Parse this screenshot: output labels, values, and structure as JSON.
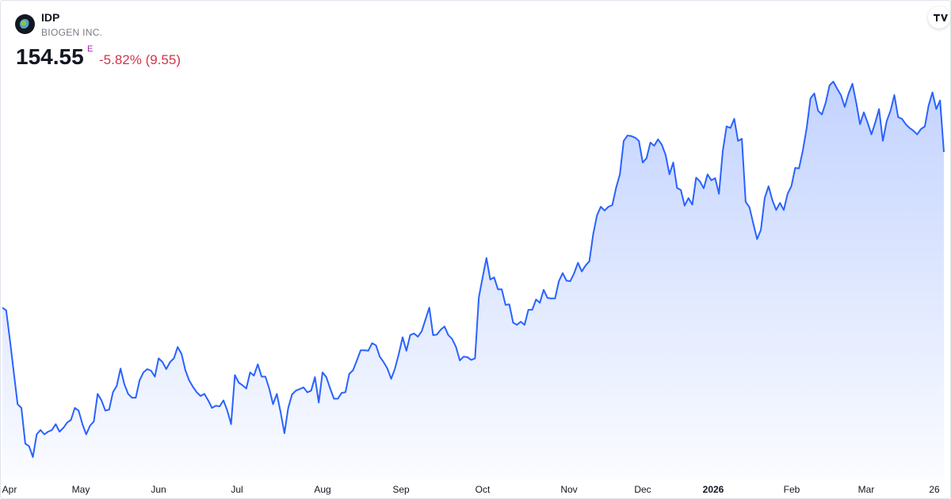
{
  "header": {
    "symbol": "IDP",
    "name": "BIOGEN INC.",
    "price": "154.55",
    "badge": "E",
    "change": "-5.82% (9.55)"
  },
  "chart_data": {
    "type": "area",
    "x_labels": [
      "Apr",
      "May",
      "Jun",
      "Jul",
      "Aug",
      "Sep",
      "Oct",
      "Nov",
      "Dec",
      "2026",
      "Feb",
      "Mar",
      "26"
    ],
    "series": [
      {
        "color": "#2962ff",
        "values": [
          125.7,
          125.2,
          119.6,
          113.7,
          107.8,
          107.1,
          100.5,
          100.0,
          98.0,
          102.2,
          103.0,
          102.2,
          102.7,
          103.0,
          104.1,
          102.7,
          103.4,
          104.4,
          104.9,
          107.1,
          106.6,
          104.1,
          102.2,
          103.8,
          104.6,
          109.7,
          108.5,
          106.6,
          106.8,
          110.0,
          111.2,
          114.4,
          111.5,
          109.7,
          109.0,
          109.0,
          112.2,
          113.7,
          114.3,
          114.0,
          112.9,
          116.3,
          115.6,
          114.3,
          115.6,
          116.3,
          118.4,
          117.1,
          114.1,
          112.2,
          111.0,
          110.0,
          109.3,
          109.7,
          108.5,
          107.1,
          107.5,
          107.4,
          108.5,
          106.6,
          104.1,
          113.2,
          111.8,
          111.3,
          110.7,
          113.7,
          113.1,
          115.2,
          112.9,
          112.9,
          110.7,
          107.8,
          109.7,
          106.3,
          102.4,
          107.1,
          109.6,
          110.3,
          110.6,
          110.9,
          110.0,
          110.3,
          112.8,
          108.1,
          113.7,
          112.8,
          110.7,
          108.8,
          108.8,
          109.9,
          110.0,
          113.4,
          114.1,
          115.9,
          117.8,
          117.8,
          117.7,
          119.1,
          118.7,
          116.6,
          115.6,
          114.4,
          112.5,
          114.4,
          117.1,
          120.2,
          117.7,
          120.6,
          120.9,
          120.3,
          121.3,
          123.5,
          125.7,
          120.6,
          120.7,
          121.6,
          122.2,
          120.6,
          119.9,
          118.4,
          115.9,
          116.6,
          116.5,
          116.0,
          116.3,
          127.6,
          131.3,
          134.9,
          130.9,
          131.3,
          129.1,
          129.1,
          126.2,
          126.3,
          122.9,
          122.5,
          123.1,
          122.5,
          125.3,
          125.3,
          127.2,
          126.6,
          129.0,
          127.5,
          127.4,
          127.4,
          130.6,
          132.1,
          130.7,
          130.6,
          132.1,
          134.0,
          132.4,
          133.5,
          134.3,
          139.3,
          142.8,
          144.4,
          143.7,
          144.4,
          144.7,
          147.9,
          150.4,
          156.6,
          157.6,
          157.5,
          157.2,
          156.6,
          152.6,
          153.4,
          156.3,
          155.7,
          156.9,
          155.9,
          154.0,
          150.4,
          152.6,
          147.9,
          147.5,
          144.6,
          146.0,
          144.8,
          149.8,
          149.1,
          147.8,
          150.4,
          149.3,
          149.7,
          146.8,
          154.7,
          159.3,
          159.0,
          160.7,
          156.6,
          157.0,
          145.3,
          144.3,
          141.3,
          138.4,
          140.1,
          146.0,
          148.2,
          145.6,
          143.8,
          145.1,
          143.8,
          146.8,
          148.2,
          151.6,
          151.5,
          154.8,
          159.0,
          164.5,
          165.4,
          162.2,
          161.5,
          163.7,
          166.9,
          167.6,
          166.3,
          165.1,
          162.9,
          165.4,
          167.2,
          163.7,
          159.7,
          161.9,
          160.0,
          157.8,
          160.0,
          162.5,
          156.6,
          160.3,
          162.2,
          165.1,
          161.0,
          160.7,
          159.7,
          159.0,
          158.5,
          157.8,
          158.8,
          159.3,
          163.2,
          165.6,
          162.5,
          164.1,
          154.55
        ]
      }
    ]
  }
}
